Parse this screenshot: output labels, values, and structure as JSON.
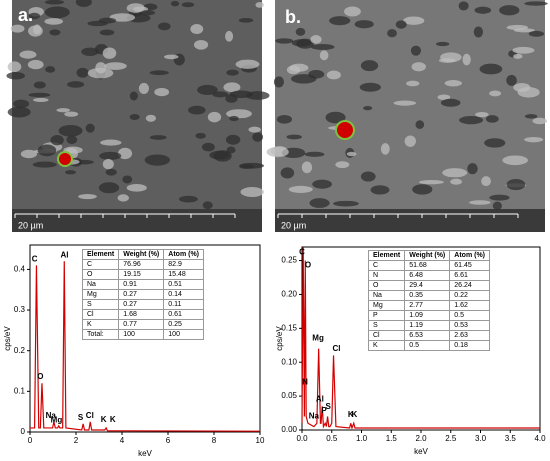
{
  "images": [
    {
      "label": "a.",
      "scale": "20 µm"
    },
    {
      "label": "b.",
      "scale": "20 µm"
    }
  ],
  "chart_data": [
    {
      "type": "line",
      "x_label": "keV",
      "y_label": "cps/eV",
      "color": "#d40000",
      "x": [
        0,
        0.2,
        0.28,
        0.38,
        0.45,
        0.52,
        0.6,
        0.98,
        1.04,
        1.1,
        1.2,
        1.25,
        1.3,
        1.42,
        1.49,
        1.56,
        2.25,
        2.31,
        2.37,
        2.56,
        2.62,
        2.68,
        3.25,
        3.31,
        3.37,
        10
      ],
      "values": [
        0.01,
        0.01,
        0.41,
        0.01,
        0.01,
        0.12,
        0.01,
        0.01,
        0.025,
        0.01,
        0.01,
        0.015,
        0.01,
        0.01,
        0.42,
        0.01,
        0.005,
        0.02,
        0.005,
        0.005,
        0.025,
        0.005,
        0.005,
        0.01,
        0.003,
        0.002
      ],
      "xlim": [
        0,
        10
      ],
      "xticks": [
        0,
        2,
        4,
        6,
        8,
        10
      ],
      "ylim": [
        0,
        0.46
      ],
      "yticks": [
        0,
        0.1,
        0.2,
        0.3,
        0.4
      ],
      "annotations": [
        {
          "text": "C",
          "x": 0.2,
          "y": 0.425
        },
        {
          "text": "O",
          "x": 0.45,
          "y": 0.135
        },
        {
          "text": "Na",
          "x": 0.9,
          "y": 0.04
        },
        {
          "text": "Mg",
          "x": 1.15,
          "y": 0.028
        },
        {
          "text": "Al",
          "x": 1.5,
          "y": 0.435
        },
        {
          "text": "S",
          "x": 2.2,
          "y": 0.035
        },
        {
          "text": "Cl",
          "x": 2.6,
          "y": 0.04
        },
        {
          "text": "K",
          "x": 3.2,
          "y": 0.03
        },
        {
          "text": "K",
          "x": 3.6,
          "y": 0.03
        }
      ],
      "table": {
        "header": [
          "Element",
          "Weight (%)",
          "Atom (%)"
        ],
        "rows": [
          [
            "C",
            "76.96",
            "82.9"
          ],
          [
            "O",
            "19.15",
            "15.48"
          ],
          [
            "Na",
            "0.91",
            "0.51"
          ],
          [
            "Mg",
            "0.27",
            "0.14"
          ],
          [
            "S",
            "0.27",
            "0.11"
          ],
          [
            "Cl",
            "1.68",
            "0.61"
          ],
          [
            "K",
            "0.77",
            "0.25"
          ],
          [
            "Total:",
            "100",
            "100"
          ]
        ]
      }
    },
    {
      "type": "line",
      "x_label": "keV",
      "y_label": "cps/eV",
      "color": "#d40000",
      "x": [
        0,
        0.02,
        0.04,
        0.055,
        0.07,
        0.1,
        0.2,
        0.25,
        0.28,
        0.31,
        0.32,
        0.34,
        0.36,
        0.39,
        0.41,
        0.43,
        0.45,
        0.47,
        0.5,
        0.53,
        0.57,
        0.8,
        0.82,
        0.84,
        0.87,
        0.89,
        4.0
      ],
      "values": [
        0.01,
        0.27,
        0.02,
        0.25,
        0.02,
        0.01,
        0.005,
        0.01,
        0.12,
        0.01,
        0.01,
        0.035,
        0.005,
        0.01,
        0.005,
        0.02,
        0.005,
        0.005,
        0.01,
        0.11,
        0.005,
        0.003,
        0.01,
        0.003,
        0.01,
        0.003,
        0.003
      ],
      "xlim": [
        0,
        4
      ],
      "xticks": [
        {
          "value": 0,
          "label": "0.0"
        },
        0.5,
        {
          "value": 1,
          "label": "1.0"
        },
        1.5,
        {
          "value": 2,
          "label": "2.0"
        },
        2.5,
        {
          "value": 3,
          "label": "3.0"
        },
        3.5,
        {
          "value": 4,
          "label": "4.0"
        }
      ],
      "ylim": [
        0,
        0.27
      ],
      "yticks": [
        {
          "value": 0,
          "label": "0.00"
        },
        0.05,
        {
          "value": 0.1,
          "label": "0.10"
        },
        0.15,
        {
          "value": 0.2,
          "label": "0.20"
        },
        0.25
      ],
      "annotations": [
        {
          "text": "C",
          "x": 0.0,
          "y": 0.262
        },
        {
          "text": "O",
          "x": 0.1,
          "y": 0.243
        },
        {
          "text": "N",
          "x": 0.05,
          "y": 0.07
        },
        {
          "text": "Mg",
          "x": 0.27,
          "y": 0.135
        },
        {
          "text": "Cl",
          "x": 0.58,
          "y": 0.12
        },
        {
          "text": "Al",
          "x": 0.3,
          "y": 0.045
        },
        {
          "text": "Na",
          "x": 0.2,
          "y": 0.02
        },
        {
          "text": "P",
          "x": 0.37,
          "y": 0.028
        },
        {
          "text": "S",
          "x": 0.44,
          "y": 0.034
        },
        {
          "text": "K",
          "x": 0.82,
          "y": 0.022
        },
        {
          "text": "K",
          "x": 0.88,
          "y": 0.022
        }
      ],
      "table": {
        "header": [
          "Element",
          "Weight (%)",
          "Atom (%)"
        ],
        "rows": [
          [
            "C",
            "51.68",
            "61.45"
          ],
          [
            "N",
            "6.48",
            "6.61"
          ],
          [
            "O",
            "29.4",
            "26.24"
          ],
          [
            "Na",
            "0.35",
            "0.22"
          ],
          [
            "Mg",
            "2.77",
            "1.62"
          ],
          [
            "P",
            "1.09",
            "0.5"
          ],
          [
            "S",
            "1.19",
            "0.53"
          ],
          [
            "Cl",
            "6.53",
            "2.63"
          ],
          [
            "K",
            "0.5",
            "0.18"
          ]
        ]
      }
    }
  ]
}
